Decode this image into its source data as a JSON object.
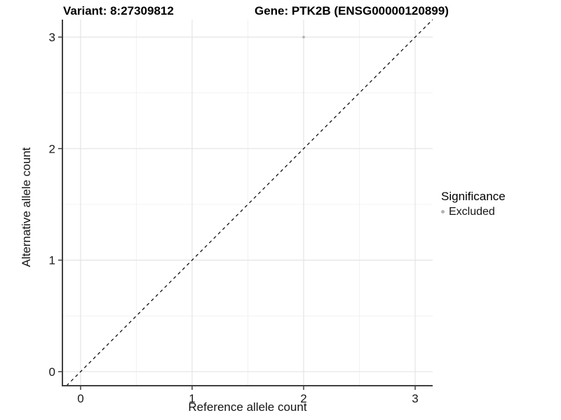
{
  "header": {
    "title_variant": "Variant: 8:27309812",
    "title_gene": "Gene: PTK2B (ENSG00000120899)"
  },
  "axes": {
    "xlabel": "Reference allele count",
    "ylabel": "Alternative allele count"
  },
  "legend": {
    "title": "Significance",
    "entries": [
      {
        "label": "Excluded",
        "color": "#b3b3b3"
      }
    ]
  },
  "colors": {
    "background": "#ffffff",
    "grid_major": "#e4e4e4",
    "grid_minor": "#f0f0f0",
    "axis_line": "#404040",
    "tick_mark": "#404040",
    "tick_label": "#1a1a1a",
    "identity_line": "#000000",
    "point": "#b3b3b3"
  },
  "chart_data": {
    "type": "scatter",
    "title": "Variant: 8:27309812    Gene: PTK2B (ENSG00000120899)",
    "xlabel": "Reference allele count",
    "ylabel": "Alternative allele count",
    "xlim": [
      -0.163,
      3.157
    ],
    "ylim": [
      -0.126,
      3.157
    ],
    "xticks": [
      0,
      1,
      2,
      3
    ],
    "yticks": [
      0,
      1,
      2,
      3
    ],
    "xticks_minor": [
      0.5,
      1.5,
      2.5
    ],
    "yticks_minor": [
      0.5,
      1.5,
      2.5
    ],
    "grid": true,
    "legend_position": "right",
    "identity_line": {
      "style": "dashed",
      "slope": 1,
      "intercept": 0
    },
    "series": [
      {
        "name": "Excluded",
        "color": "#b3b3b3",
        "points": [
          {
            "x": 2,
            "y": 3
          }
        ]
      }
    ]
  }
}
